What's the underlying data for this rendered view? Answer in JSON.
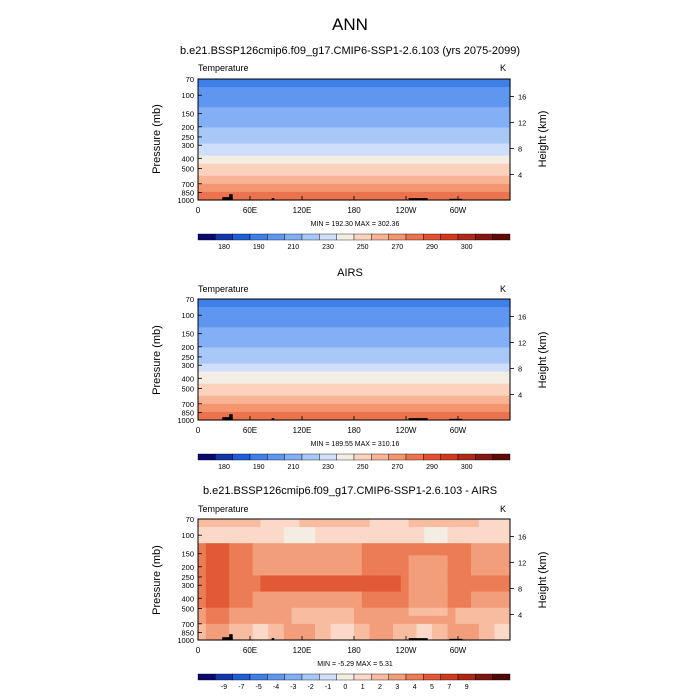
{
  "main_title": "ANN",
  "colors": {
    "temp_levels": [
      "#0a0a6e",
      "#1235a8",
      "#1f5fd6",
      "#3f7fe8",
      "#5f96f0",
      "#82aff5",
      "#a8c8f8",
      "#cfdefa",
      "#f3ede4",
      "#fbd3bc",
      "#f8b596",
      "#f3956f",
      "#ec7350",
      "#e25232",
      "#d13a1f",
      "#b0281a",
      "#861612",
      "#5e0b08"
    ],
    "diff_levels": [
      "#0a0a6e",
      "#1235a8",
      "#1f5fd6",
      "#3f7fe8",
      "#5f96f0",
      "#82aff5",
      "#a8c8f8",
      "#cfdefa",
      "#f3ede4",
      "#fbd8c8",
      "#f8bca0",
      "#f39e7a",
      "#ec7c55",
      "#e25a35",
      "#cf3b1e",
      "#ad2716",
      "#7d1510",
      "#4f0908"
    ]
  },
  "chart_data": [
    {
      "type": "heatmap",
      "id": "model",
      "title": "b.e21.BSSP126cmip6.f09_g17.CMIP6-SSP1-2.6.103 (yrs 2075-2099)",
      "left_label": "Temperature",
      "units_label": "K",
      "ylabel": "Pressure (mb)",
      "ylabel_right": "Height (km)",
      "x_ticks": [
        "0",
        "60E",
        "120E",
        "180",
        "120W",
        "60W"
      ],
      "y_ticks": [
        "70",
        "100",
        "150",
        "200",
        "250",
        "300",
        "400",
        "500",
        "700",
        "850",
        "1000"
      ],
      "y_ticks_right": [
        "16",
        "12",
        "8",
        "4"
      ],
      "stats": "MIN = 192.30   MAX = 302.36",
      "min": 192.3,
      "max": 302.36,
      "colorbar_labels": [
        "180",
        "190",
        "210",
        "230",
        "250",
        "270",
        "290",
        "300"
      ]
    },
    {
      "type": "heatmap",
      "id": "obs",
      "title": "AIRS",
      "left_label": "Temperature",
      "units_label": "K",
      "ylabel": "Pressure (mb)",
      "ylabel_right": "Height (km)",
      "x_ticks": [
        "0",
        "60E",
        "120E",
        "180",
        "120W",
        "60W"
      ],
      "y_ticks": [
        "70",
        "100",
        "150",
        "200",
        "250",
        "300",
        "400",
        "500",
        "700",
        "850",
        "1000"
      ],
      "y_ticks_right": [
        "16",
        "12",
        "8",
        "4"
      ],
      "stats": "MIN = 189.55   MAX = 310.16",
      "min": 189.55,
      "max": 310.16,
      "colorbar_labels": [
        "180",
        "190",
        "210",
        "230",
        "250",
        "270",
        "290",
        "300"
      ]
    },
    {
      "type": "heatmap",
      "id": "diff",
      "title": "b.e21.BSSP126cmip6.f09_g17.CMIP6-SSP1-2.6.103 - AIRS",
      "left_label": "Temperature",
      "units_label": "K",
      "ylabel": "Pressure (mb)",
      "ylabel_right": "Height (km)",
      "x_ticks": [
        "0",
        "60E",
        "120E",
        "180",
        "120W",
        "60W"
      ],
      "y_ticks": [
        "70",
        "100",
        "150",
        "200",
        "250",
        "300",
        "400",
        "500",
        "700",
        "850",
        "1000"
      ],
      "y_ticks_right": [
        "16",
        "12",
        "8",
        "4"
      ],
      "stats": "MIN = -5.29   MAX = 5.31",
      "min": -5.29,
      "max": 5.31,
      "colorbar_labels": [
        "-9",
        "-7",
        "-5",
        "-4",
        "-3",
        "-2",
        "-1",
        "0",
        "1",
        "2",
        "3",
        "4",
        "5",
        "7",
        "9"
      ]
    }
  ]
}
